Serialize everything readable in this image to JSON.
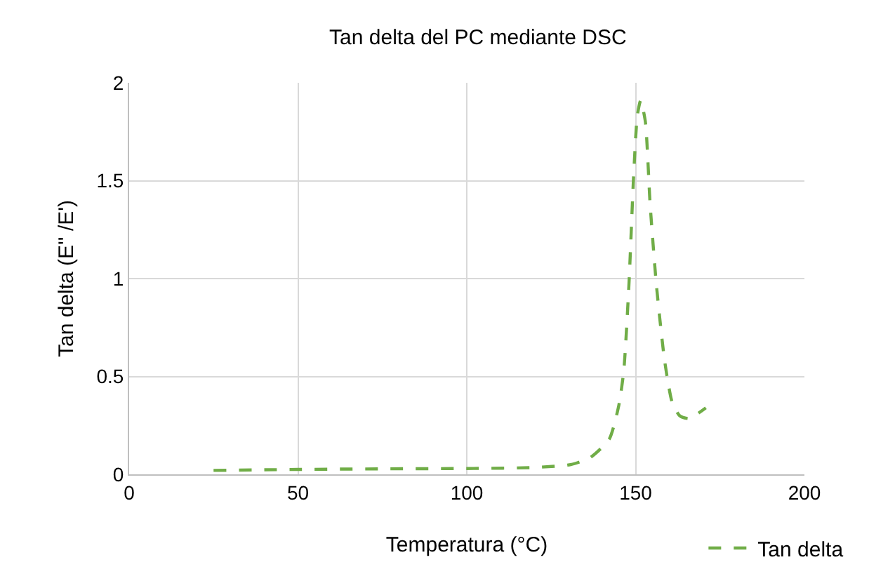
{
  "chart_data": {
    "type": "line",
    "title": "Tan delta del PC mediante DSC",
    "xlabel": "Temperatura (°C)",
    "ylabel": "Tan delta (E'' /E')",
    "xlim": [
      0,
      200
    ],
    "xticks": [
      0,
      50,
      100,
      150,
      200
    ],
    "ylim": [
      0,
      2
    ],
    "yticks": [
      0,
      0.5,
      1,
      1.5,
      2
    ],
    "grid": true,
    "legend": "bottom right",
    "line_style": "dashed",
    "marker": "none",
    "x": [
      25,
      50,
      75,
      102,
      120,
      130.8,
      136.5,
      142.2,
      145,
      146.5,
      148,
      149.4,
      150.5,
      151.5,
      152.9,
      154.3,
      156.2,
      158.6,
      160.8,
      163,
      165.8,
      170.8
    ],
    "series": [
      {
        "name": "Tan delta",
        "color": "#70ad47",
        "values": [
          0.02,
          0.025,
          0.028,
          0.03,
          0.035,
          0.05,
          0.085,
          0.18,
          0.35,
          0.53,
          0.96,
          1.52,
          1.83,
          1.91,
          1.8,
          1.38,
          0.96,
          0.58,
          0.37,
          0.3,
          0.285,
          0.34
        ]
      }
    ]
  }
}
